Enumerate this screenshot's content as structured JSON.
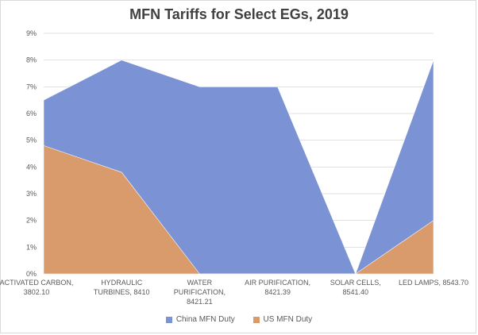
{
  "chart_data": {
    "type": "area",
    "title": "MFN Tariffs for Select EGs, 2019",
    "xlabel": "",
    "ylabel": "",
    "ylim": [
      0,
      9
    ],
    "yticks": [
      "0%",
      "1%",
      "2%",
      "3%",
      "4%",
      "5%",
      "6%",
      "7%",
      "8%",
      "9%"
    ],
    "categories": [
      [
        "ACTIVATED CARBON,",
        "3802.10"
      ],
      [
        "HYDRAULIC",
        "TURBINES, 8410"
      ],
      [
        "WATER",
        "PURIFICATION,",
        "8421.21"
      ],
      [
        "AIR PURIFICATION,",
        "8421.39"
      ],
      [
        "SOLAR CELLS,",
        "8541.40"
      ],
      [
        "LED LAMPS, 8543.70"
      ]
    ],
    "series": [
      {
        "name": "China MFN Duty",
        "color": "#7b93d4",
        "values": [
          6.5,
          8,
          7,
          7,
          0,
          8
        ]
      },
      {
        "name": "US MFN Duty",
        "color": "#d99a6c",
        "values": [
          4.8,
          3.8,
          0,
          0,
          0,
          2
        ]
      }
    ],
    "grid": true,
    "legend": "bottom"
  }
}
